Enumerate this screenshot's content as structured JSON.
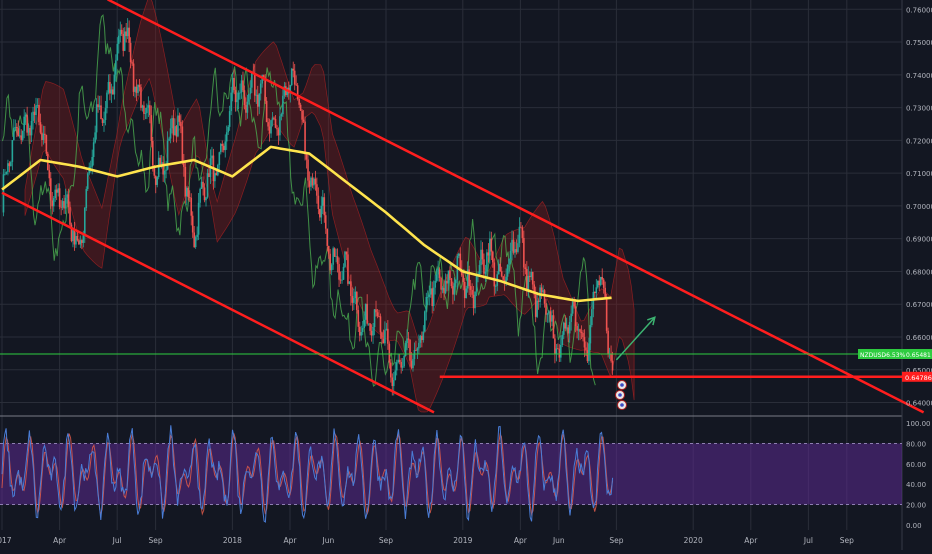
{
  "colors": {
    "background": "#131722",
    "grid": "#2a2e39",
    "up_candle": "#26a69a",
    "down_candle": "#ef5350",
    "channel": "#ff1e1e",
    "moving_average": "#ffe44d",
    "cloud": "#8b1a1a",
    "lagging_line": "#4caf50",
    "stoch_band": "#5b2a8f",
    "stoch_k": "#4a7dd6",
    "stoch_d": "#e05a4a",
    "price_line": "#2ecc40",
    "support": "#ff1e1e",
    "arrow": "#3cb371",
    "axis_text": "#b2b5be"
  },
  "chart_data": [
    {
      "type": "candlestick",
      "pane": "price",
      "symbol_label": "NZDUSD",
      "change_label": "-6.53%",
      "current_price_label": "0.65481",
      "support_label": "0.64786",
      "x_ticks": [
        "2017",
        "Apr",
        "Jul",
        "Sep",
        "2018",
        "Apr",
        "Jun",
        "Sep",
        "2019",
        "Apr",
        "Jun",
        "Sep",
        "2020",
        "Apr",
        "Jul",
        "Sep"
      ],
      "x_tick_months": [
        0,
        3,
        6,
        8,
        12,
        15,
        17,
        20,
        24,
        27,
        29,
        32,
        36,
        39,
        42,
        44
      ],
      "y_ticks": [
        "0.64000",
        "0.65000",
        "0.66000",
        "0.67000",
        "0.68000",
        "0.69000",
        "0.70000",
        "0.71000",
        "0.72000",
        "0.73000",
        "0.74000",
        "0.75000",
        "0.76000"
      ],
      "ylim": [
        0.6365,
        0.761
      ],
      "price_path": {
        "months": [
          0,
          1,
          2,
          3,
          4,
          5,
          6,
          6.5,
          7,
          8,
          9,
          10,
          11,
          12,
          13,
          14,
          15,
          15.5,
          16,
          17,
          18,
          19,
          20,
          20.5,
          21,
          22,
          23,
          24,
          25,
          26,
          27,
          27.5,
          28,
          29,
          30,
          30.5,
          31,
          31.5,
          31.8
        ],
        "close": [
          0.701,
          0.728,
          0.722,
          0.7,
          0.69,
          0.725,
          0.745,
          0.752,
          0.74,
          0.71,
          0.725,
          0.695,
          0.71,
          0.73,
          0.738,
          0.725,
          0.736,
          0.733,
          0.71,
          0.69,
          0.675,
          0.665,
          0.66,
          0.648,
          0.65,
          0.665,
          0.68,
          0.675,
          0.682,
          0.68,
          0.688,
          0.68,
          0.668,
          0.66,
          0.665,
          0.66,
          0.675,
          0.665,
          0.651
        ]
      },
      "moving_average": {
        "months": [
          0,
          2,
          4,
          6,
          8,
          10,
          12,
          14,
          16,
          18,
          20,
          22,
          24,
          26,
          28,
          30,
          31.8
        ],
        "value": [
          0.705,
          0.714,
          0.712,
          0.709,
          0.712,
          0.714,
          0.709,
          0.718,
          0.716,
          0.707,
          0.698,
          0.688,
          0.68,
          0.677,
          0.673,
          0.671,
          0.672
        ]
      },
      "channel_upper": {
        "months": [
          5.5,
          48
        ],
        "value": [
          0.763,
          0.637
        ]
      },
      "channel_lower": {
        "months": [
          0,
          22.5
        ],
        "value": [
          0.704,
          0.637
        ]
      },
      "support_line": {
        "months": [
          22.8,
          48
        ],
        "value": 0.64786
      },
      "current_price_line": 0.65481,
      "projection_arrow": {
        "from_month": 32,
        "from_value": 0.653,
        "to_month": 34,
        "to_value": 0.666
      },
      "event_markers": 3
    },
    {
      "type": "line",
      "pane": "stochastic",
      "y_ticks": [
        "0.00",
        "20.00",
        "40.00",
        "60.00",
        "80.00",
        "100.00"
      ],
      "ylim": [
        -5,
        105
      ],
      "band": [
        20,
        80
      ],
      "series": [
        {
          "role": "k"
        },
        {
          "role": "d"
        }
      ]
    }
  ]
}
